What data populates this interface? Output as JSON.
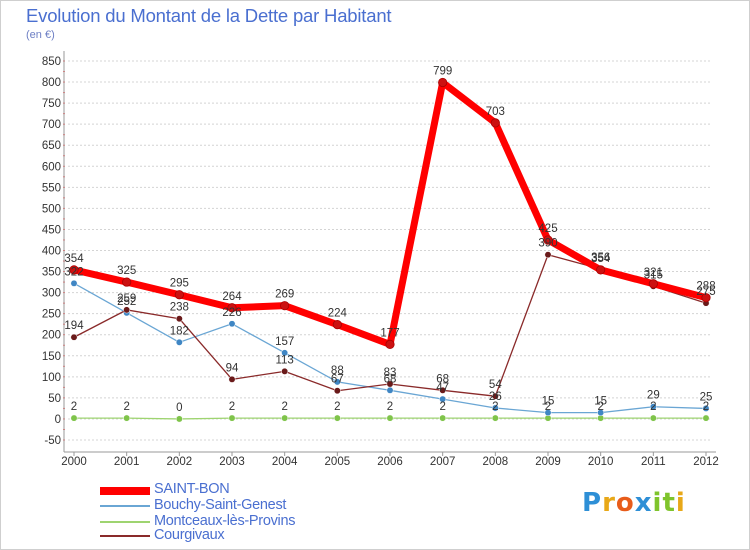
{
  "title": "Evolution du Montant de la Dette par Habitant",
  "subtitle": "(en €)",
  "logo": {
    "letters": [
      "P",
      "r",
      "o",
      "x",
      "i",
      "t",
      "i"
    ],
    "colors": [
      "#2e8fd6",
      "#e8a818",
      "#e85c1a",
      "#2e8fd6",
      "#7fc42c",
      "#7fc42c",
      "#e8a818"
    ]
  },
  "legend": [
    {
      "label": "SAINT-BON",
      "color": "#ff0000"
    },
    {
      "label": "Bouchy-Saint-Genest",
      "color": "#6aa6d4"
    },
    {
      "label": "Montceaux-lès-Provins",
      "color": "#9ed470"
    },
    {
      "label": "Courgivaux",
      "color": "#8a2a2a"
    }
  ],
  "chart_data": {
    "type": "line",
    "title": "Evolution du Montant de la Dette par Habitant",
    "subtitle": "(en €)",
    "x": [
      "2000",
      "2001",
      "2002",
      "2003",
      "2004",
      "2005",
      "2006",
      "2007",
      "2008",
      "2009",
      "2010",
      "2011",
      "2012"
    ],
    "yticks": [
      -50,
      0,
      50,
      100,
      150,
      200,
      250,
      300,
      350,
      400,
      450,
      500,
      550,
      600,
      650,
      700,
      750,
      800,
      850
    ],
    "ylim": [
      -50,
      850
    ],
    "grid": "horizontal dashed",
    "legend_position": "bottom-left",
    "series": [
      {
        "name": "SAINT-BON",
        "color": "#ff0000",
        "marker": "#cc1111",
        "values": [
          354,
          325,
          295,
          264,
          269,
          224,
          177,
          799,
          703,
          425,
          354,
          321,
          288
        ],
        "labels": [
          "354",
          "325",
          "295",
          "264",
          "269",
          "224",
          "177",
          "799",
          "703",
          "425",
          "354",
          "321",
          "288"
        ]
      },
      {
        "name": "Bouchy-Saint-Genest",
        "color": "#6aa6d4",
        "marker": "#3f86c4",
        "values": [
          322,
          252,
          182,
          226,
          157,
          88,
          68,
          47,
          26,
          15,
          15,
          29,
          25
        ],
        "labels": [
          "322",
          "252",
          "182",
          "226",
          "157",
          "88",
          "68",
          "47",
          "26",
          "15",
          "15",
          "29",
          "25"
        ]
      },
      {
        "name": "Montceaux-lès-Provins",
        "color": "#9ed470",
        "marker": "#7fc44a",
        "values": [
          2,
          2,
          0,
          2,
          2,
          2,
          2,
          2,
          2,
          2,
          2,
          2,
          2
        ],
        "labels": [
          "2",
          "2",
          "0",
          "2",
          "2",
          "2",
          "2",
          "2",
          "2",
          "2",
          "2",
          "2",
          "2"
        ]
      },
      {
        "name": "Courgivaux",
        "color": "#8a2a2a",
        "marker": "#6a1a1a",
        "values": [
          194,
          259,
          238,
          94,
          113,
          67,
          83,
          68,
          54,
          390,
          356,
          315,
          275
        ],
        "labels": [
          "194",
          "259",
          "238",
          "94",
          "113",
          "67",
          "83",
          "68",
          "54",
          "390",
          "356",
          "315",
          "275"
        ]
      }
    ]
  }
}
